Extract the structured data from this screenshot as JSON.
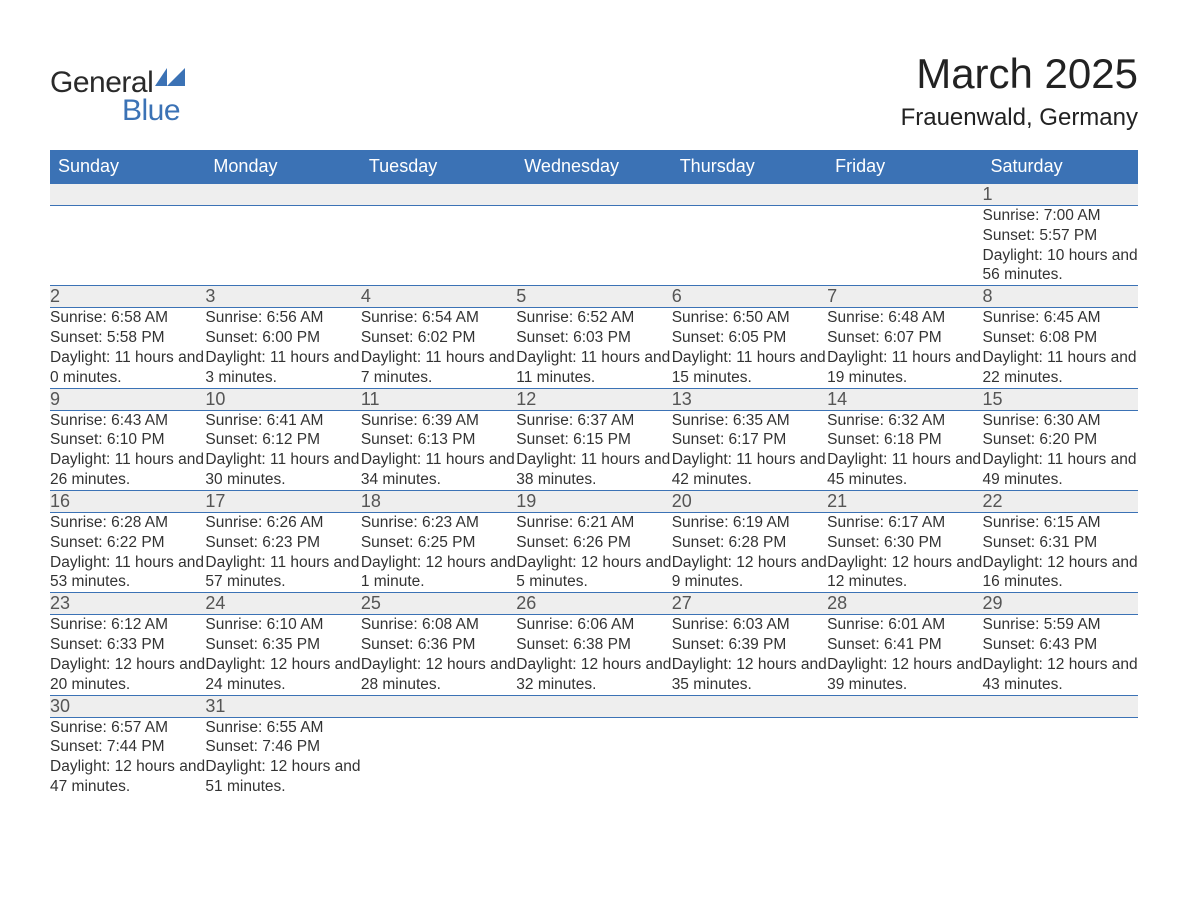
{
  "logo": {
    "line1": "General",
    "line2": "Blue",
    "accent_color": "#3b72b5"
  },
  "title": "March 2025",
  "location": "Frauenwald, Germany",
  "calendar": {
    "header_bg": "#3b72b5",
    "header_fg": "#ffffff",
    "daynum_bg": "#eeeeee",
    "border_color": "#3b72b5",
    "text_color": "#333333",
    "font_family": "Arial",
    "days_of_week": [
      "Sunday",
      "Monday",
      "Tuesday",
      "Wednesday",
      "Thursday",
      "Friday",
      "Saturday"
    ],
    "weeks": [
      [
        null,
        null,
        null,
        null,
        null,
        null,
        {
          "n": "1",
          "sunrise": "7:00 AM",
          "sunset": "5:57 PM",
          "daylight": "10 hours and 56 minutes."
        }
      ],
      [
        {
          "n": "2",
          "sunrise": "6:58 AM",
          "sunset": "5:58 PM",
          "daylight": "11 hours and 0 minutes."
        },
        {
          "n": "3",
          "sunrise": "6:56 AM",
          "sunset": "6:00 PM",
          "daylight": "11 hours and 3 minutes."
        },
        {
          "n": "4",
          "sunrise": "6:54 AM",
          "sunset": "6:02 PM",
          "daylight": "11 hours and 7 minutes."
        },
        {
          "n": "5",
          "sunrise": "6:52 AM",
          "sunset": "6:03 PM",
          "daylight": "11 hours and 11 minutes."
        },
        {
          "n": "6",
          "sunrise": "6:50 AM",
          "sunset": "6:05 PM",
          "daylight": "11 hours and 15 minutes."
        },
        {
          "n": "7",
          "sunrise": "6:48 AM",
          "sunset": "6:07 PM",
          "daylight": "11 hours and 19 minutes."
        },
        {
          "n": "8",
          "sunrise": "6:45 AM",
          "sunset": "6:08 PM",
          "daylight": "11 hours and 22 minutes."
        }
      ],
      [
        {
          "n": "9",
          "sunrise": "6:43 AM",
          "sunset": "6:10 PM",
          "daylight": "11 hours and 26 minutes."
        },
        {
          "n": "10",
          "sunrise": "6:41 AM",
          "sunset": "6:12 PM",
          "daylight": "11 hours and 30 minutes."
        },
        {
          "n": "11",
          "sunrise": "6:39 AM",
          "sunset": "6:13 PM",
          "daylight": "11 hours and 34 minutes."
        },
        {
          "n": "12",
          "sunrise": "6:37 AM",
          "sunset": "6:15 PM",
          "daylight": "11 hours and 38 minutes."
        },
        {
          "n": "13",
          "sunrise": "6:35 AM",
          "sunset": "6:17 PM",
          "daylight": "11 hours and 42 minutes."
        },
        {
          "n": "14",
          "sunrise": "6:32 AM",
          "sunset": "6:18 PM",
          "daylight": "11 hours and 45 minutes."
        },
        {
          "n": "15",
          "sunrise": "6:30 AM",
          "sunset": "6:20 PM",
          "daylight": "11 hours and 49 minutes."
        }
      ],
      [
        {
          "n": "16",
          "sunrise": "6:28 AM",
          "sunset": "6:22 PM",
          "daylight": "11 hours and 53 minutes."
        },
        {
          "n": "17",
          "sunrise": "6:26 AM",
          "sunset": "6:23 PM",
          "daylight": "11 hours and 57 minutes."
        },
        {
          "n": "18",
          "sunrise": "6:23 AM",
          "sunset": "6:25 PM",
          "daylight": "12 hours and 1 minute."
        },
        {
          "n": "19",
          "sunrise": "6:21 AM",
          "sunset": "6:26 PM",
          "daylight": "12 hours and 5 minutes."
        },
        {
          "n": "20",
          "sunrise": "6:19 AM",
          "sunset": "6:28 PM",
          "daylight": "12 hours and 9 minutes."
        },
        {
          "n": "21",
          "sunrise": "6:17 AM",
          "sunset": "6:30 PM",
          "daylight": "12 hours and 12 minutes."
        },
        {
          "n": "22",
          "sunrise": "6:15 AM",
          "sunset": "6:31 PM",
          "daylight": "12 hours and 16 minutes."
        }
      ],
      [
        {
          "n": "23",
          "sunrise": "6:12 AM",
          "sunset": "6:33 PM",
          "daylight": "12 hours and 20 minutes."
        },
        {
          "n": "24",
          "sunrise": "6:10 AM",
          "sunset": "6:35 PM",
          "daylight": "12 hours and 24 minutes."
        },
        {
          "n": "25",
          "sunrise": "6:08 AM",
          "sunset": "6:36 PM",
          "daylight": "12 hours and 28 minutes."
        },
        {
          "n": "26",
          "sunrise": "6:06 AM",
          "sunset": "6:38 PM",
          "daylight": "12 hours and 32 minutes."
        },
        {
          "n": "27",
          "sunrise": "6:03 AM",
          "sunset": "6:39 PM",
          "daylight": "12 hours and 35 minutes."
        },
        {
          "n": "28",
          "sunrise": "6:01 AM",
          "sunset": "6:41 PM",
          "daylight": "12 hours and 39 minutes."
        },
        {
          "n": "29",
          "sunrise": "5:59 AM",
          "sunset": "6:43 PM",
          "daylight": "12 hours and 43 minutes."
        }
      ],
      [
        {
          "n": "30",
          "sunrise": "6:57 AM",
          "sunset": "7:44 PM",
          "daylight": "12 hours and 47 minutes."
        },
        {
          "n": "31",
          "sunrise": "6:55 AM",
          "sunset": "7:46 PM",
          "daylight": "12 hours and 51 minutes."
        },
        null,
        null,
        null,
        null,
        null
      ]
    ],
    "labels": {
      "sunrise": "Sunrise: ",
      "sunset": "Sunset: ",
      "daylight": "Daylight: "
    }
  }
}
